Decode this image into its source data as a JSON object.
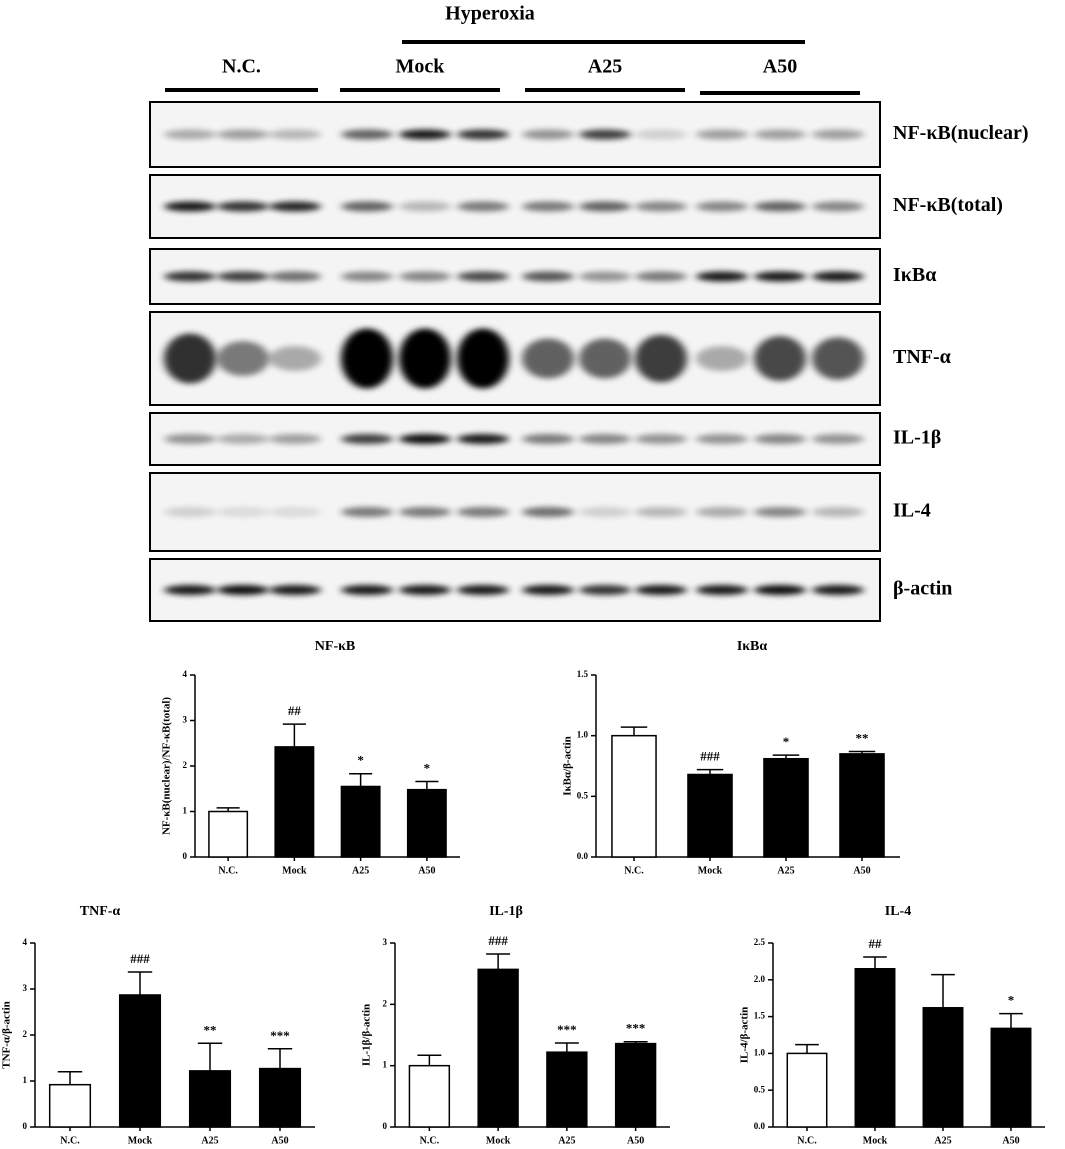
{
  "blot": {
    "header": "Hyperoxia",
    "groups": [
      "N.C.",
      "Mock",
      "A25",
      "A50"
    ],
    "rows": [
      "NF-κB(nuclear)",
      "NF-κB(total)",
      "IκBα",
      "TNF-α",
      "IL-1β",
      "IL-4",
      "β-actin"
    ]
  },
  "chart_data": [
    {
      "type": "bar",
      "title": "NF-κB",
      "ylabel": "NF-κB(nuclear)/NF-κB(total)",
      "categories": [
        "N.C.",
        "Mock",
        "A25",
        "A50"
      ],
      "values": [
        1.0,
        2.42,
        1.55,
        1.48
      ],
      "errors": [
        0.08,
        0.5,
        0.28,
        0.18
      ],
      "annotations": [
        null,
        "##",
        "*",
        "*"
      ],
      "colors": [
        "#ffffff",
        "#000000",
        "#000000",
        "#000000"
      ],
      "ylim": [
        0,
        4
      ],
      "yticks": [
        0,
        1,
        2,
        3,
        4
      ]
    },
    {
      "type": "bar",
      "title": "IκBα",
      "ylabel": "IκBα/β-actin",
      "categories": [
        "N.C.",
        "Mock",
        "A25",
        "A50"
      ],
      "values": [
        1.0,
        0.68,
        0.81,
        0.85
      ],
      "errors": [
        0.07,
        0.04,
        0.03,
        0.02
      ],
      "annotations": [
        null,
        "###",
        "*",
        "**"
      ],
      "colors": [
        "#ffffff",
        "#000000",
        "#000000",
        "#000000"
      ],
      "ylim": [
        0,
        1.5
      ],
      "yticks": [
        {
          "value": 0,
          "label": "0.0"
        },
        {
          "value": 0.5,
          "label": "0.5"
        },
        {
          "value": 1,
          "label": "1.0"
        },
        {
          "value": 1.5,
          "label": "1.5"
        }
      ]
    },
    {
      "type": "bar",
      "title": "TNF-α",
      "ylabel": "TNF-α/β-actin",
      "categories": [
        "N.C.",
        "Mock",
        "A25",
        "A50"
      ],
      "values": [
        0.92,
        2.87,
        1.22,
        1.27
      ],
      "errors": [
        0.28,
        0.5,
        0.6,
        0.43
      ],
      "annotations": [
        null,
        "###",
        "**",
        "***"
      ],
      "colors": [
        "#ffffff",
        "#000000",
        "#000000",
        "#000000"
      ],
      "ylim": [
        0,
        4
      ],
      "yticks": [
        0,
        1,
        2,
        3,
        4
      ]
    },
    {
      "type": "bar",
      "title": "IL-1β",
      "ylabel": "IL-1β/β-actin",
      "categories": [
        "N.C.",
        "Mock",
        "A25",
        "A50"
      ],
      "values": [
        1.0,
        2.57,
        1.22,
        1.36
      ],
      "errors": [
        0.17,
        0.25,
        0.15,
        0.03
      ],
      "annotations": [
        null,
        "###",
        "***",
        "***"
      ],
      "colors": [
        "#ffffff",
        "#000000",
        "#000000",
        "#000000"
      ],
      "ylim": [
        0,
        3
      ],
      "yticks": [
        0,
        1,
        2,
        3
      ]
    },
    {
      "type": "bar",
      "title": "IL-4",
      "ylabel": "IL-4/β-actin",
      "categories": [
        "N.C.",
        "Mock",
        "A25",
        "A50"
      ],
      "values": [
        1.0,
        2.15,
        1.62,
        1.34
      ],
      "errors": [
        0.12,
        0.16,
        0.45,
        0.2
      ],
      "annotations": [
        null,
        "##",
        null,
        "*"
      ],
      "colors": [
        "#ffffff",
        "#000000",
        "#000000",
        "#000000"
      ],
      "ylim": [
        0,
        2.5
      ],
      "yticks": [
        {
          "value": 0,
          "label": "0.0"
        },
        {
          "value": 0.5,
          "label": "0.5"
        },
        {
          "value": 1,
          "label": "1.0"
        },
        {
          "value": 1.5,
          "label": "1.5"
        },
        {
          "value": 2,
          "label": "2.0"
        },
        {
          "value": 2.5,
          "label": "2.5"
        }
      ]
    }
  ]
}
